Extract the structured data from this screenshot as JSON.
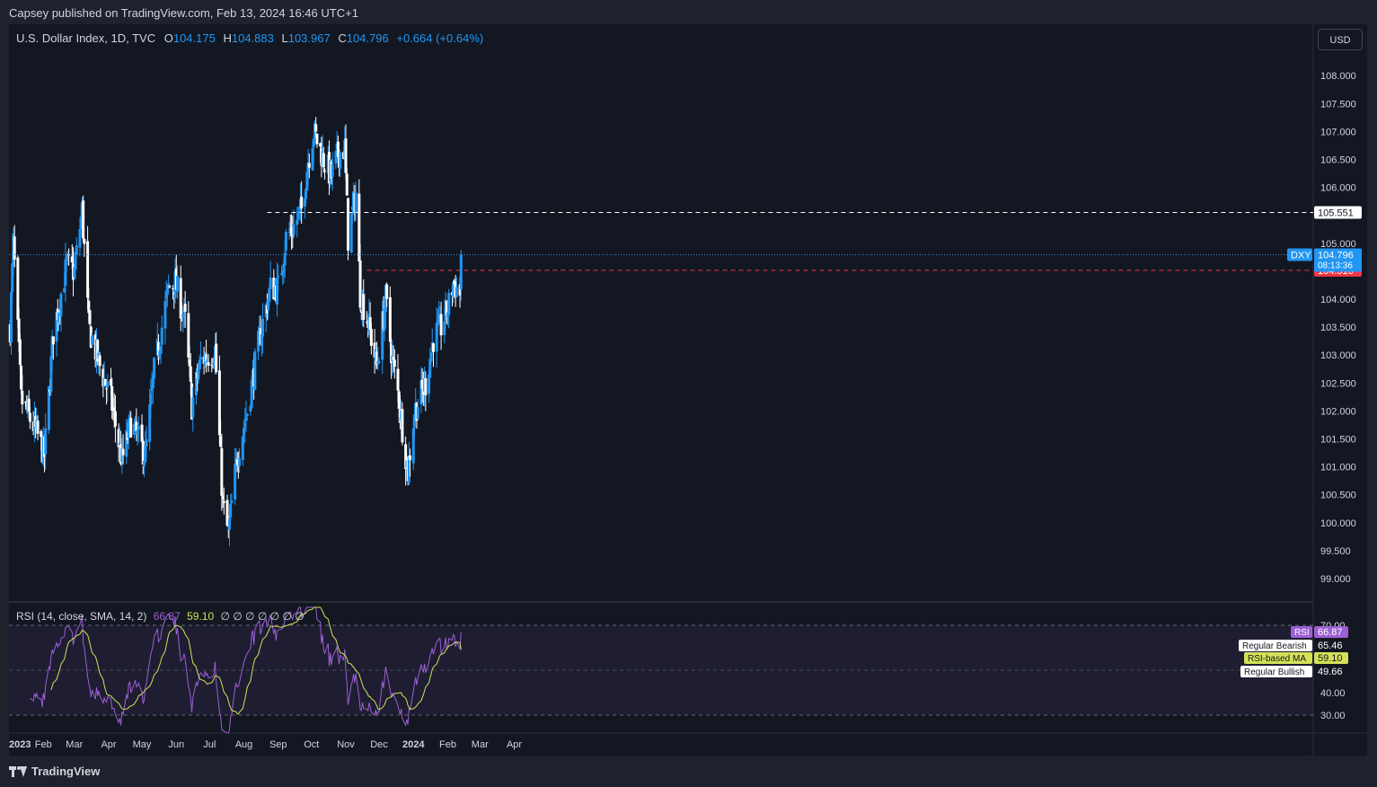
{
  "header": {
    "published": "Capsey published on TradingView.com, Feb 13, 2024 16:46 UTC+1"
  },
  "legend": {
    "symbol": "U.S. Dollar Index, 1D, TVC",
    "o_label": "O",
    "o": "104.175",
    "h_label": "H",
    "h": "104.883",
    "l_label": "L",
    "l": "103.967",
    "c_label": "C",
    "c": "104.796",
    "change": "+0.664 (+0.64%)"
  },
  "currency_button": "USD",
  "footer": {
    "brand": "TradingView"
  },
  "rsi_legend": {
    "label": "RSI (14, close, SMA, 14, 2)",
    "rsi": "66.87",
    "ma": "59.10",
    "extras": "∅ ∅ ∅ ∅ ∅ ∅ ∅"
  },
  "colors": {
    "background": "#131722",
    "up_candle": "#2196f3",
    "down_candle": "#ffffff",
    "rsi_line": "#9c5fd4",
    "rsi_ma": "#d4e157",
    "resistance_line": "#ffffff",
    "support_line": "#f23645"
  },
  "chart_data": [
    {
      "type": "candlestick",
      "title": "U.S. Dollar Index, 1D, TVC",
      "symbol_tag": "DXY",
      "last_price": "104.796",
      "countdown": "08:13:36",
      "x_ticks": [
        "2023",
        "Feb",
        "Mar",
        "Apr",
        "May",
        "Jun",
        "Jul",
        "Aug",
        "Sep",
        "Oct",
        "Nov",
        "Dec",
        "2024",
        "Feb",
        "Mar",
        "Apr"
      ],
      "y_ticks": [
        "99.000",
        "99.500",
        "100.000",
        "100.500",
        "101.000",
        "101.500",
        "102.000",
        "102.500",
        "103.000",
        "103.500",
        "104.000",
        "104.500",
        "105.000",
        "105.500",
        "106.000",
        "106.500",
        "107.000",
        "107.500",
        "108.000"
      ],
      "ylim": [
        98.6,
        108.7
      ],
      "horizontal_lines": [
        {
          "label": "105.551",
          "value": 105.551,
          "style": "dashed-white",
          "from": "2023-08-22"
        },
        {
          "label": "104.516",
          "value": 104.516,
          "style": "dashed-red",
          "from": "2023-11-20"
        }
      ],
      "last_bar": {
        "date": "2024-02-13",
        "open": 104.175,
        "high": 104.883,
        "low": 103.967,
        "close": 104.796
      },
      "close_path": [
        [
          "2023-01-02",
          103.5
        ],
        [
          "2023-01-05",
          105.0
        ],
        [
          "2023-01-12",
          102.2
        ],
        [
          "2023-01-26",
          101.6
        ],
        [
          "2023-02-02",
          101.2
        ],
        [
          "2023-02-10",
          103.4
        ],
        [
          "2023-02-22",
          104.6
        ],
        [
          "2023-03-01",
          104.5
        ],
        [
          "2023-03-08",
          105.6
        ],
        [
          "2023-03-14",
          103.5
        ],
        [
          "2023-03-24",
          102.8
        ],
        [
          "2023-04-03",
          102.2
        ],
        [
          "2023-04-13",
          101.1
        ],
        [
          "2023-04-21",
          101.8
        ],
        [
          "2023-05-04",
          101.2
        ],
        [
          "2023-05-12",
          102.7
        ],
        [
          "2023-05-25",
          104.2
        ],
        [
          "2023-05-31",
          104.3
        ],
        [
          "2023-06-09",
          103.6
        ],
        [
          "2023-06-15",
          102.1
        ],
        [
          "2023-06-23",
          102.9
        ],
        [
          "2023-06-30",
          103.0
        ],
        [
          "2023-07-06",
          103.1
        ],
        [
          "2023-07-13",
          100.3
        ],
        [
          "2023-07-18",
          99.8
        ],
        [
          "2023-07-26",
          101.2
        ],
        [
          "2023-08-04",
          102.0
        ],
        [
          "2023-08-16",
          103.4
        ],
        [
          "2023-08-25",
          104.2
        ],
        [
          "2023-09-01",
          104.2
        ],
        [
          "2023-09-08",
          105.1
        ],
        [
          "2023-09-15",
          105.3
        ],
        [
          "2023-09-22",
          105.6
        ],
        [
          "2023-09-28",
          106.5
        ],
        [
          "2023-10-03",
          107.0
        ],
        [
          "2023-10-12",
          106.5
        ],
        [
          "2023-10-19",
          106.2
        ],
        [
          "2023-10-25",
          106.6
        ],
        [
          "2023-10-31",
          106.7
        ],
        [
          "2023-11-03",
          105.1
        ],
        [
          "2023-11-10",
          105.9
        ],
        [
          "2023-11-14",
          104.1
        ],
        [
          "2023-11-21",
          103.6
        ],
        [
          "2023-11-29",
          102.8
        ],
        [
          "2023-12-07",
          104.0
        ],
        [
          "2023-12-13",
          102.9
        ],
        [
          "2023-12-19",
          102.2
        ],
        [
          "2023-12-27",
          100.9
        ],
        [
          "2024-01-02",
          102.0
        ],
        [
          "2024-01-12",
          102.5
        ],
        [
          "2024-01-19",
          103.3
        ],
        [
          "2024-01-26",
          103.5
        ],
        [
          "2024-02-02",
          103.9
        ],
        [
          "2024-02-06",
          104.3
        ],
        [
          "2024-02-12",
          104.1
        ],
        [
          "2024-02-13",
          104.796
        ]
      ]
    },
    {
      "type": "line",
      "title": "RSI (14, close, SMA, 14, 2)",
      "y_ticks": [
        "30.00",
        "40.00",
        "70.00"
      ],
      "bands": [
        30,
        70
      ],
      "ylim": [
        25,
        75
      ],
      "series": [
        {
          "name": "RSI",
          "value": "66.87"
        },
        {
          "name": "RSI-based MA",
          "value": "59.10"
        }
      ],
      "side_labels": [
        {
          "label": "Regular Bearish",
          "value": "65.46"
        },
        {
          "label": "Regular Bullish",
          "value": "49.66"
        }
      ]
    }
  ]
}
